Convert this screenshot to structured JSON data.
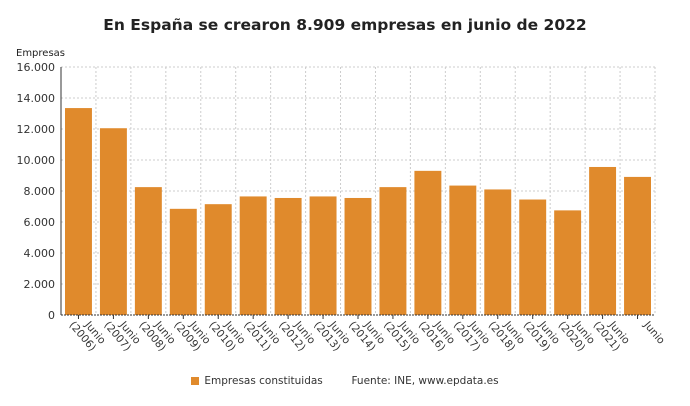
{
  "chart_data": {
    "type": "bar",
    "title": "En España se crearon 8.909 empresas en junio de 2022",
    "ylabel": "Empresas",
    "xlabel": "",
    "ylim": [
      0,
      16000
    ],
    "yticks": [
      "0",
      "2.000",
      "4.000",
      "6.000",
      "8.000",
      "10.000",
      "12.000",
      "14.000",
      "16.000"
    ],
    "grid": true,
    "categories": [
      "Junio (2006)",
      "Junio (2007)",
      "Junio (2008)",
      "Junio (2009)",
      "Junio (2010)",
      "Junio (2011)",
      "Junio (2012)",
      "Junio (2013)",
      "Junio (2014)",
      "Junio (2015)",
      "Junio (2016)",
      "Junio (2017)",
      "Junio (2018)",
      "Junio (2019)",
      "Junio (2020)",
      "Junio (2021)",
      "Junio"
    ],
    "series": [
      {
        "name": "Empresas constituidas",
        "color": "#e08a2c",
        "values": [
          13350,
          12050,
          8250,
          6850,
          7150,
          7650,
          7550,
          7650,
          7550,
          8250,
          9300,
          8350,
          8100,
          7450,
          6750,
          9550,
          8909
        ]
      }
    ],
    "legend_position": "bottom",
    "source": "Fuente: INE, www.epdata.es"
  }
}
